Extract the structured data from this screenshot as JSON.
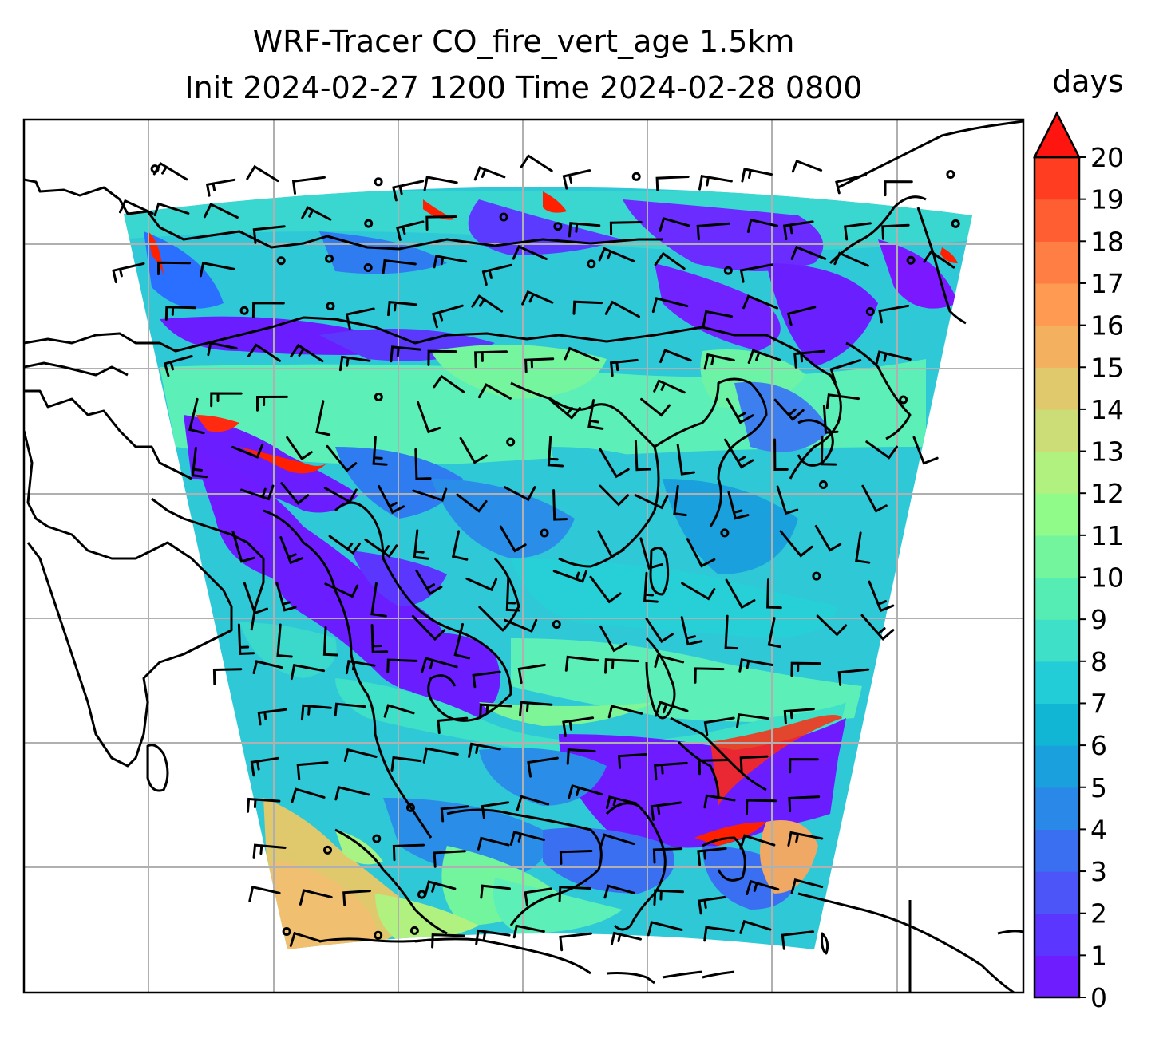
{
  "title_line1": "WRF-Tracer CO_fire_vert_age 1.5km",
  "title_line2": "Init 2024-02-27 1200 Time 2024-02-28 0800",
  "colorbar": {
    "label": "days",
    "ticks": [
      "0",
      "1",
      "2",
      "3",
      "4",
      "5",
      "6",
      "7",
      "8",
      "9",
      "10",
      "11",
      "12",
      "13",
      "14",
      "15",
      "16",
      "17",
      "18",
      "19",
      "20"
    ],
    "extend": "max",
    "colors": [
      "#6e1dff",
      "#5b36ff",
      "#4b55f8",
      "#3a6ff1",
      "#2a89e8",
      "#1aa0dd",
      "#10b6d4",
      "#22cdd8",
      "#3ee0c8",
      "#56edb5",
      "#73f59e",
      "#91fb8a",
      "#b0f17f",
      "#ccdc77",
      "#e0c86d",
      "#f3b05f",
      "#ff9a52",
      "#ff7e44",
      "#ff5e33",
      "#ff3d21",
      "#ff1510"
    ]
  },
  "map": {
    "grid": "on",
    "field": "CO_fire_vert_age",
    "dominant_colors": {
      "low": "#6a1eff",
      "mid_low": "#2f7ef0",
      "mid": "#20d2d8",
      "mid_high": "#5cf0b8",
      "high": "#f0c070",
      "max": "#ff2000"
    },
    "overlays": [
      "wind-barbs",
      "calm-circles",
      "coastlines"
    ]
  }
}
